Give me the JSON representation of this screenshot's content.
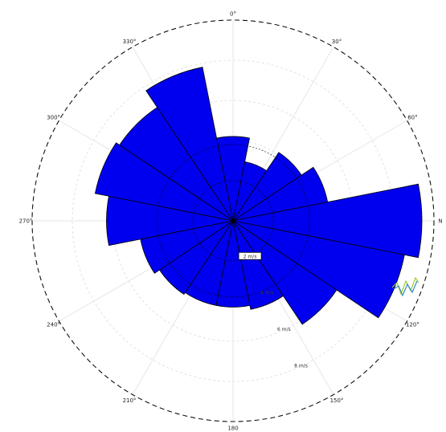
{
  "chart_data": {
    "type": "wind-rose",
    "title": "",
    "direction_ticks": [
      {
        "angle": 0,
        "label": "0°"
      },
      {
        "angle": 30,
        "label": "30°"
      },
      {
        "angle": 60,
        "label": "60°"
      },
      {
        "angle": 90,
        "label": "N"
      },
      {
        "angle": 120,
        "label": "120°"
      },
      {
        "angle": 150,
        "label": "150°"
      },
      {
        "angle": 180,
        "label": "180"
      },
      {
        "angle": 210,
        "label": "210°"
      },
      {
        "angle": 240,
        "label": "240°"
      },
      {
        "angle": 270,
        "label": "270°"
      },
      {
        "angle": 300,
        "label": "300°"
      },
      {
        "angle": 330,
        "label": "330°"
      }
    ],
    "radial_max": 100,
    "ring_values": [
      20,
      40,
      60,
      80
    ],
    "ring_labels": [
      "2 m/s",
      "4 m/s",
      "6 m/s",
      "8 m/s"
    ],
    "bin_width_deg": 22.5,
    "bins": [
      {
        "direction": 0,
        "value": 42
      },
      {
        "direction": 22.5,
        "value": 30
      },
      {
        "direction": 45,
        "value": 41
      },
      {
        "direction": 67.5,
        "value": 48
      },
      {
        "direction": 90,
        "value": 94
      },
      {
        "direction": 112.5,
        "value": 87
      },
      {
        "direction": 135,
        "value": 62
      },
      {
        "direction": 157.5,
        "value": 45
      },
      {
        "direction": 180,
        "value": 43
      },
      {
        "direction": 202.5,
        "value": 43
      },
      {
        "direction": 225,
        "value": 44
      },
      {
        "direction": 247.5,
        "value": 47
      },
      {
        "direction": 270,
        "value": 63
      },
      {
        "direction": 292.5,
        "value": 70
      },
      {
        "direction": 315,
        "value": 68
      },
      {
        "direction": 337.5,
        "value": 78
      }
    ],
    "colors": {
      "petal_fill": "#0000ee",
      "petal_stroke": "#000000",
      "trace_green": "#9bd02a",
      "trace_blue": "#3a86c8"
    },
    "grid": true,
    "legend": "none"
  }
}
